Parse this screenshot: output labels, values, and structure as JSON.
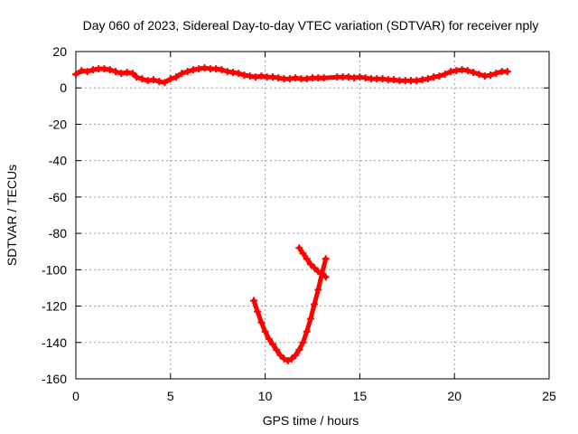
{
  "chart_data": {
    "type": "scatter",
    "title": "Day 060 of 2023, Sidereal Day-to-day VTEC variation (SDTVAR) for receiver nply",
    "xlabel": "GPS time / hours",
    "ylabel": "SDTVAR / TECUs",
    "xlim": [
      0,
      25
    ],
    "ylim": [
      -160,
      20
    ],
    "xticks": [
      0,
      5,
      10,
      15,
      20,
      25
    ],
    "yticks": [
      -160,
      -140,
      -120,
      -100,
      -80,
      -60,
      -40,
      -20,
      0,
      20
    ],
    "grid": true,
    "color": "#ff0000",
    "series": [
      {
        "points": [
          [
            0,
            7.5
          ],
          [
            0.3,
            9.5
          ],
          [
            0.6,
            9
          ],
          [
            0.9,
            10
          ],
          [
            1.2,
            10.5
          ],
          [
            1.5,
            10.5
          ],
          [
            1.8,
            10
          ],
          [
            2.1,
            9
          ],
          [
            2.4,
            8
          ],
          [
            2.7,
            8.5
          ],
          [
            3.0,
            8
          ],
          [
            3.2,
            6
          ],
          [
            3.5,
            5
          ],
          [
            3.8,
            4
          ],
          [
            4.1,
            4.5
          ],
          [
            4.4,
            3.5
          ],
          [
            4.7,
            3
          ],
          [
            5.0,
            5
          ],
          [
            5.3,
            6
          ],
          [
            5.6,
            8
          ],
          [
            5.9,
            9
          ],
          [
            6.2,
            10
          ],
          [
            6.5,
            10.5
          ],
          [
            6.8,
            11
          ],
          [
            7.1,
            10.5
          ],
          [
            7.4,
            10.5
          ],
          [
            7.7,
            10
          ],
          [
            8.0,
            9
          ],
          [
            8.3,
            8.5
          ],
          [
            8.6,
            8
          ],
          [
            8.9,
            7
          ],
          [
            9.2,
            6.5
          ],
          [
            9.5,
            6
          ],
          [
            9.8,
            6.5
          ],
          [
            10.1,
            6
          ],
          [
            10.4,
            6
          ],
          [
            10.7,
            5.5
          ],
          [
            11.0,
            5
          ],
          [
            11.3,
            5
          ],
          [
            11.6,
            5.5
          ],
          [
            11.9,
            5
          ],
          [
            12.2,
            5
          ],
          [
            12.5,
            5.5
          ],
          [
            12.8,
            5.5
          ],
          [
            13.1,
            5.5
          ],
          [
            13.8,
            6
          ],
          [
            14.1,
            6
          ],
          [
            14.4,
            6
          ],
          [
            14.7,
            5.5
          ],
          [
            15.0,
            6
          ],
          [
            15.3,
            5.5
          ],
          [
            15.6,
            5
          ],
          [
            15.9,
            5
          ],
          [
            16.2,
            5
          ],
          [
            16.5,
            4.5
          ],
          [
            16.8,
            4.5
          ],
          [
            17.1,
            4
          ],
          [
            17.4,
            4
          ],
          [
            17.7,
            4
          ],
          [
            18.0,
            4
          ],
          [
            18.3,
            4.5
          ],
          [
            18.6,
            5
          ],
          [
            18.9,
            6
          ],
          [
            19.2,
            6.5
          ],
          [
            19.5,
            7.5
          ],
          [
            19.8,
            9
          ],
          [
            20.1,
            9.5
          ],
          [
            20.4,
            10
          ],
          [
            20.7,
            9.5
          ],
          [
            21.0,
            8.5
          ],
          [
            21.3,
            7.5
          ],
          [
            21.6,
            6.5
          ],
          [
            21.9,
            7
          ],
          [
            22.2,
            8
          ],
          [
            22.5,
            9
          ],
          [
            22.8,
            9
          ]
        ]
      },
      {
        "points": [
          [
            9.4,
            -117
          ],
          [
            9.6,
            -123
          ],
          [
            9.8,
            -129
          ],
          [
            10.0,
            -134
          ],
          [
            10.2,
            -138
          ],
          [
            10.4,
            -141
          ],
          [
            10.6,
            -144
          ],
          [
            10.8,
            -147
          ],
          [
            11.0,
            -149
          ],
          [
            11.2,
            -150
          ],
          [
            11.4,
            -149
          ],
          [
            11.6,
            -147
          ],
          [
            11.8,
            -144
          ],
          [
            12.0,
            -140
          ],
          [
            12.2,
            -134
          ],
          [
            12.4,
            -127
          ],
          [
            12.6,
            -119
          ],
          [
            12.8,
            -111
          ],
          [
            13.0,
            -102
          ],
          [
            13.2,
            -94
          ]
        ]
      },
      {
        "points": [
          [
            11.8,
            -88
          ],
          [
            12.0,
            -91
          ],
          [
            12.2,
            -94
          ],
          [
            12.4,
            -97
          ],
          [
            12.6,
            -99
          ],
          [
            12.8,
            -101
          ],
          [
            13.0,
            -102
          ],
          [
            13.2,
            -104
          ]
        ]
      }
    ]
  }
}
